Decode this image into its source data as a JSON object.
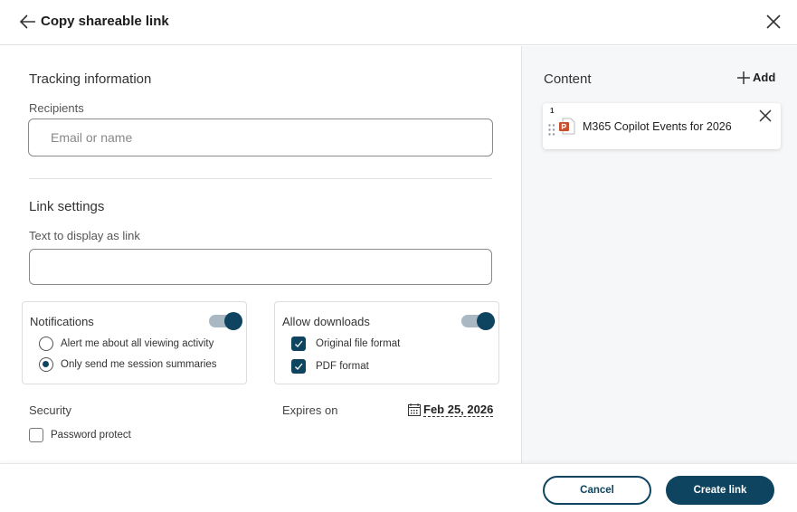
{
  "header": {
    "title": "Copy shareable link",
    "back_icon": "arrow-left-icon",
    "close_icon": "close-icon"
  },
  "tracking": {
    "heading": "Tracking information",
    "recipients_label": "Recipients",
    "recipients_placeholder": "Email or name"
  },
  "link_settings": {
    "heading": "Link settings",
    "display_text_label": "Text to display as link",
    "display_text_value": ""
  },
  "notifications": {
    "label": "Notifications",
    "enabled": true,
    "options": [
      {
        "label": "Alert me about all viewing activity",
        "selected": false
      },
      {
        "label": "Only send me session summaries",
        "selected": true
      }
    ]
  },
  "downloads": {
    "label": "Allow downloads",
    "enabled": true,
    "options": [
      {
        "label": "Original file format",
        "checked": true
      },
      {
        "label": "PDF format",
        "checked": true
      }
    ]
  },
  "security": {
    "label": "Security",
    "password_protect": "Password protect",
    "password_checked": false
  },
  "expires": {
    "label": "Expires on",
    "date": "Feb 25, 2026"
  },
  "content": {
    "heading": "Content",
    "add_label": "Add",
    "items": [
      {
        "index": "1",
        "name": "M365 Copilot Events for 2026",
        "icon": "powerpoint-file-icon"
      }
    ]
  },
  "footer": {
    "cancel": "Cancel",
    "create": "Create link"
  },
  "colors": {
    "accent": "#0e4460"
  }
}
